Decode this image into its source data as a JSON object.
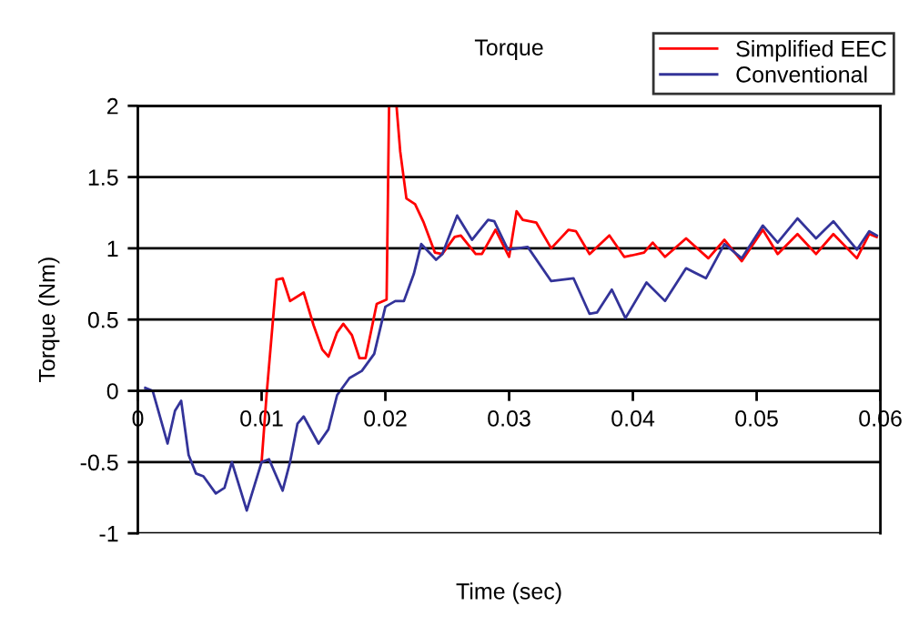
{
  "chart_data": {
    "type": "line",
    "title": "Torque",
    "xlabel": "Time (sec)",
    "ylabel": "Torque (Nm)",
    "xlim": [
      0,
      0.06
    ],
    "xticks": [
      0,
      0.01,
      0.02,
      0.03,
      0.04,
      0.05,
      0.06
    ],
    "ylim": [
      -1,
      2
    ],
    "yticks": [
      -1,
      -0.5,
      0,
      0.5,
      1,
      1.5,
      2
    ],
    "grid": "y",
    "legend": "top right",
    "marker": "none",
    "line_style": "solid",
    "series": [
      {
        "name": "Simplified EEC",
        "color": "#ff0000",
        "x": [
          0.01,
          0.0104,
          0.0109,
          0.0112,
          0.0117,
          0.0123,
          0.0134,
          0.0142,
          0.0149,
          0.0154,
          0.0161,
          0.0166,
          0.0173,
          0.0179,
          0.0184,
          0.0193,
          0.0201,
          0.0203,
          0.0209,
          0.0212,
          0.0217,
          0.0224,
          0.0231,
          0.024,
          0.0246,
          0.0256,
          0.0261,
          0.0273,
          0.0278,
          0.0289,
          0.03,
          0.0306,
          0.0311,
          0.0322,
          0.0334,
          0.0348,
          0.0354,
          0.0365,
          0.0381,
          0.0393,
          0.0399,
          0.0409,
          0.0416,
          0.0426,
          0.0443,
          0.0461,
          0.0474,
          0.0488,
          0.0505,
          0.0517,
          0.0533,
          0.0548,
          0.0562,
          0.0581,
          0.0591,
          0.0597
        ],
        "values": [
          -0.5,
          -0.03,
          0.48,
          0.78,
          0.79,
          0.63,
          0.69,
          0.46,
          0.29,
          0.24,
          0.41,
          0.47,
          0.39,
          0.23,
          0.23,
          0.61,
          0.64,
          2.0,
          2.0,
          1.68,
          1.35,
          1.31,
          1.18,
          0.97,
          0.96,
          1.08,
          1.09,
          0.96,
          0.96,
          1.13,
          0.94,
          1.26,
          1.2,
          1.18,
          1.0,
          1.13,
          1.12,
          0.96,
          1.09,
          0.94,
          0.95,
          0.97,
          1.04,
          0.94,
          1.07,
          0.93,
          1.06,
          0.91,
          1.13,
          0.96,
          1.1,
          0.96,
          1.1,
          0.93,
          1.1,
          1.08
        ]
      },
      {
        "name": "Conventional",
        "color": "#333399",
        "x": [
          0.0006,
          0.0012,
          0.0024,
          0.003,
          0.0035,
          0.0041,
          0.0047,
          0.0053,
          0.0063,
          0.007,
          0.0076,
          0.0088,
          0.01,
          0.0106,
          0.0117,
          0.0123,
          0.0129,
          0.0134,
          0.0146,
          0.0154,
          0.0161,
          0.0171,
          0.0181,
          0.0191,
          0.02,
          0.0208,
          0.0215,
          0.0223,
          0.0229,
          0.0241,
          0.0246,
          0.0258,
          0.027,
          0.0283,
          0.0288,
          0.0299,
          0.0315,
          0.0334,
          0.0352,
          0.0365,
          0.0371,
          0.0383,
          0.0394,
          0.0411,
          0.0426,
          0.0443,
          0.0459,
          0.0474,
          0.0488,
          0.0505,
          0.0517,
          0.0533,
          0.0548,
          0.0562,
          0.0581,
          0.0591,
          0.0597
        ],
        "values": [
          0.02,
          0.0,
          -0.37,
          -0.14,
          -0.07,
          -0.45,
          -0.58,
          -0.6,
          -0.72,
          -0.68,
          -0.5,
          -0.84,
          -0.5,
          -0.48,
          -0.7,
          -0.5,
          -0.23,
          -0.18,
          -0.37,
          -0.27,
          -0.03,
          0.09,
          0.14,
          0.26,
          0.59,
          0.63,
          0.63,
          0.82,
          1.03,
          0.92,
          0.96,
          1.23,
          1.06,
          1.2,
          1.19,
          0.99,
          1.01,
          0.77,
          0.79,
          0.54,
          0.55,
          0.71,
          0.51,
          0.76,
          0.63,
          0.86,
          0.79,
          1.03,
          0.93,
          1.16,
          1.04,
          1.21,
          1.07,
          1.19,
          0.99,
          1.12,
          1.09
        ]
      }
    ]
  }
}
